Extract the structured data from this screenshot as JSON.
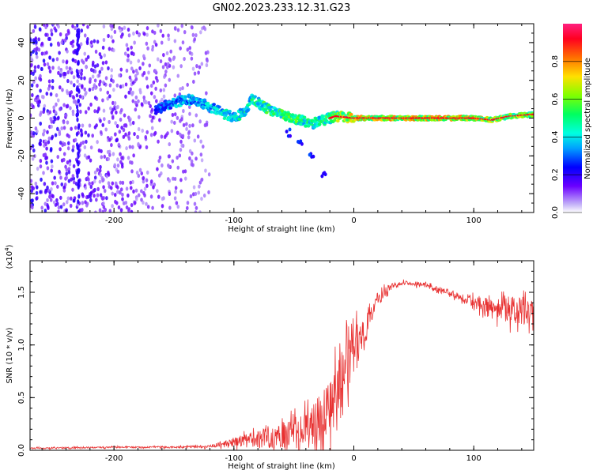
{
  "figure_title": "GN02.2023.233.12.31.G23",
  "chart_data": [
    {
      "type": "heatmap",
      "title": "GN02.2023.233.12.31.G23",
      "xlabel": "Height of straight line (km)",
      "ylabel": "Frequency (Hz)",
      "xlim": [
        -270,
        150
      ],
      "ylim": [
        -50,
        50
      ],
      "xticks": [
        -200,
        -100,
        0,
        100
      ],
      "yticks": [
        -40,
        -20,
        0,
        20,
        40
      ],
      "colorbar": {
        "label": "Normalized spectral amplitude",
        "range": [
          0.0,
          1.0
        ],
        "ticks": [
          0.0,
          0.2,
          0.4,
          0.6,
          0.8
        ],
        "tick_labels": [
          "0.0",
          "0.2",
          "0.4",
          "0.6",
          "0.8"
        ],
        "colormap": "rainbow"
      },
      "ridge": [
        {
          "x": -160,
          "y": 6,
          "a": 0.35
        },
        {
          "x": -150,
          "y": 8,
          "a": 0.4
        },
        {
          "x": -140,
          "y": 10,
          "a": 0.45
        },
        {
          "x": -130,
          "y": 9,
          "a": 0.45
        },
        {
          "x": -120,
          "y": 6,
          "a": 0.45
        },
        {
          "x": -110,
          "y": 3,
          "a": 0.5
        },
        {
          "x": -100,
          "y": 0,
          "a": 0.5
        },
        {
          "x": -90,
          "y": 4,
          "a": 0.55
        },
        {
          "x": -85,
          "y": 10,
          "a": 0.55
        },
        {
          "x": -75,
          "y": 6,
          "a": 0.6
        },
        {
          "x": -65,
          "y": 3,
          "a": 0.6
        },
        {
          "x": -55,
          "y": 1,
          "a": 0.65
        },
        {
          "x": -45,
          "y": -1,
          "a": 0.6
        },
        {
          "x": -35,
          "y": -3,
          "a": 0.55
        },
        {
          "x": -25,
          "y": -1,
          "a": 0.6
        },
        {
          "x": -15,
          "y": 1,
          "a": 0.7
        },
        {
          "x": 0,
          "y": 0,
          "a": 0.8
        },
        {
          "x": 50,
          "y": 0,
          "a": 0.85
        },
        {
          "x": 100,
          "y": 0,
          "a": 0.85
        },
        {
          "x": 115,
          "y": -1,
          "a": 0.7
        },
        {
          "x": 130,
          "y": 1,
          "a": 0.75
        },
        {
          "x": 150,
          "y": 2,
          "a": 0.7
        }
      ],
      "side_branch": [
        {
          "x": -55,
          "y": -8
        },
        {
          "x": -45,
          "y": -12
        },
        {
          "x": -35,
          "y": -20
        },
        {
          "x": -25,
          "y": -30
        }
      ]
    },
    {
      "type": "line",
      "xlabel": "Height of straight line (km)",
      "ylabel": "SNR (10 * v/v)",
      "scale_label": "(x10^4)",
      "xlim": [
        -270,
        150
      ],
      "ylim": [
        0,
        1.8
      ],
      "xticks": [
        -200,
        -100,
        0,
        100
      ],
      "yticks": [
        0.0,
        0.5,
        1.0,
        1.5
      ],
      "ytick_labels": [
        "0.0",
        "0.5",
        "1.0",
        "1.5"
      ],
      "color": "#e83232",
      "envelope": {
        "x": [
          -270,
          -200,
          -150,
          -120,
          -100,
          -80,
          -60,
          -40,
          -20,
          -10,
          0,
          10,
          20,
          30,
          40,
          60,
          80,
          100,
          120,
          150
        ],
        "base": [
          0.02,
          0.03,
          0.03,
          0.04,
          0.08,
          0.12,
          0.15,
          0.2,
          0.45,
          0.7,
          0.95,
          1.2,
          1.45,
          1.55,
          1.6,
          1.57,
          1.5,
          1.42,
          1.38,
          1.3
        ],
        "noise": [
          0.01,
          0.01,
          0.01,
          0.02,
          0.05,
          0.12,
          0.18,
          0.25,
          0.4,
          0.4,
          0.35,
          0.2,
          0.08,
          0.05,
          0.03,
          0.03,
          0.04,
          0.08,
          0.15,
          0.22
        ]
      }
    }
  ]
}
